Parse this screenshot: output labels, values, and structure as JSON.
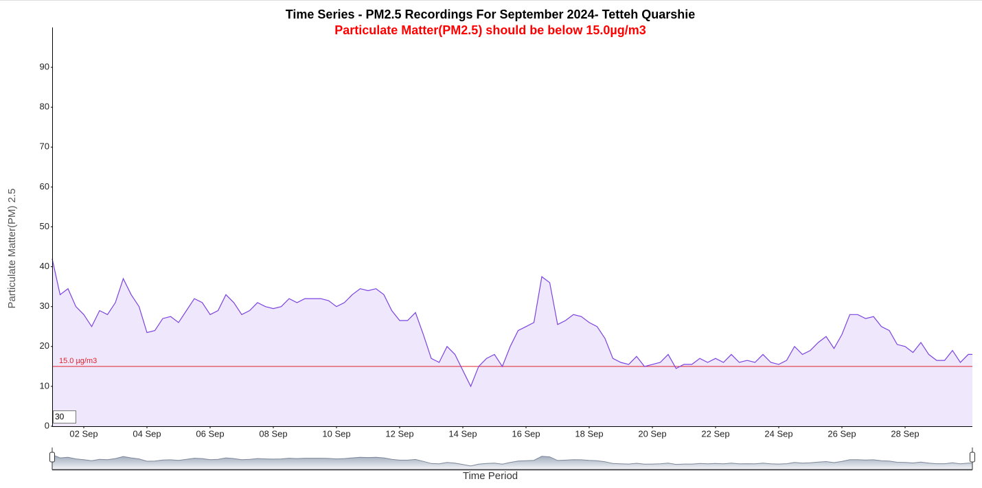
{
  "chart_data": {
    "type": "line",
    "title": "Time Series - PM2.5 Recordings For September 2024- Tetteh Quarshie",
    "subtitle": "Particulate Matter(PM2.5) should be below 15.0µg/m3",
    "y_label": "Particulate Matter(PM) 2.5",
    "x_label": "Time Period",
    "x": [
      1,
      1.25,
      1.5,
      1.75,
      2,
      2.25,
      2.5,
      2.75,
      3,
      3.25,
      3.5,
      3.75,
      4,
      4.25,
      4.5,
      4.75,
      5,
      5.25,
      5.5,
      5.75,
      6,
      6.25,
      6.5,
      6.75,
      7,
      7.25,
      7.5,
      7.75,
      8,
      8.25,
      8.5,
      8.75,
      9,
      9.25,
      9.5,
      9.75,
      10,
      10.25,
      10.5,
      10.75,
      11,
      11.25,
      11.5,
      11.75,
      12,
      12.25,
      12.5,
      12.75,
      13,
      13.25,
      13.5,
      13.75,
      14,
      14.25,
      14.5,
      14.75,
      15,
      15.25,
      15.5,
      15.75,
      16,
      16.25,
      16.5,
      16.75,
      17,
      17.25,
      17.5,
      17.75,
      18,
      18.25,
      18.5,
      18.75,
      19,
      19.25,
      19.5,
      19.75,
      20,
      20.25,
      20.5,
      20.75,
      21,
      21.25,
      21.5,
      21.75,
      22,
      22.25,
      22.5,
      22.75,
      23,
      23.25,
      23.5,
      23.75,
      24,
      24.25,
      24.5,
      24.75,
      25,
      25.25,
      25.5,
      25.75,
      26,
      26.25,
      26.5,
      26.75,
      27,
      27.25,
      27.5,
      27.75,
      28,
      28.25,
      28.5,
      28.75,
      29,
      29.25,
      29.5,
      29.75,
      30,
      30.13
    ],
    "series": [
      {
        "name": "PM2.5",
        "color": "#7b42e0",
        "fill": "#efe8fc",
        "values": [
          42,
          33,
          34.5,
          30,
          28,
          25,
          29,
          28,
          31,
          37,
          33,
          30,
          23.5,
          24,
          27,
          27.5,
          26,
          29,
          32,
          31,
          28,
          29,
          33,
          31,
          28,
          29,
          31,
          30,
          29.5,
          30,
          32,
          31,
          32,
          32,
          32,
          31.5,
          30,
          31,
          33,
          34.5,
          34,
          34.5,
          33,
          29,
          26.5,
          26.5,
          28.5,
          23,
          17,
          16,
          20,
          18,
          14,
          10,
          15,
          17,
          18,
          15,
          20,
          24,
          25,
          26,
          37.5,
          36,
          25.5,
          26.5,
          28,
          27.5,
          26,
          25,
          22,
          17,
          16,
          15.5,
          17.5,
          15,
          15.5,
          16,
          18,
          14.5,
          15.5,
          15.5,
          17,
          16,
          17,
          16,
          18,
          16,
          16.5,
          16,
          18,
          16,
          15.5,
          16.5,
          20,
          18,
          19,
          21,
          22.5,
          19.5,
          23,
          28,
          28,
          27,
          27.5,
          25,
          24,
          20.5,
          20,
          18.5,
          21,
          18,
          16.5,
          16.5,
          19,
          16,
          18,
          18
        ]
      }
    ],
    "threshold": {
      "value": 15,
      "label": "15.0 µg/m3",
      "color": "#e0202a"
    },
    "roll_period": 30,
    "xlim": [
      1,
      30.13
    ],
    "xticks": [
      {
        "value": 2,
        "label": "02 Sep"
      },
      {
        "value": 4,
        "label": "04 Sep"
      },
      {
        "value": 6,
        "label": "06 Sep"
      },
      {
        "value": 8,
        "label": "08 Sep"
      },
      {
        "value": 10,
        "label": "10 Sep"
      },
      {
        "value": 12,
        "label": "12 Sep"
      },
      {
        "value": 14,
        "label": "14 Sep"
      },
      {
        "value": 16,
        "label": "16 Sep"
      },
      {
        "value": 18,
        "label": "18 Sep"
      },
      {
        "value": 20,
        "label": "20 Sep"
      },
      {
        "value": 22,
        "label": "22 Sep"
      },
      {
        "value": 24,
        "label": "24 Sep"
      },
      {
        "value": 26,
        "label": "26 Sep"
      },
      {
        "value": 28,
        "label": "28 Sep"
      }
    ],
    "ylim": [
      0,
      100
    ],
    "yticks": [
      0,
      10,
      20,
      30,
      40,
      50,
      60,
      70,
      80,
      90
    ]
  }
}
